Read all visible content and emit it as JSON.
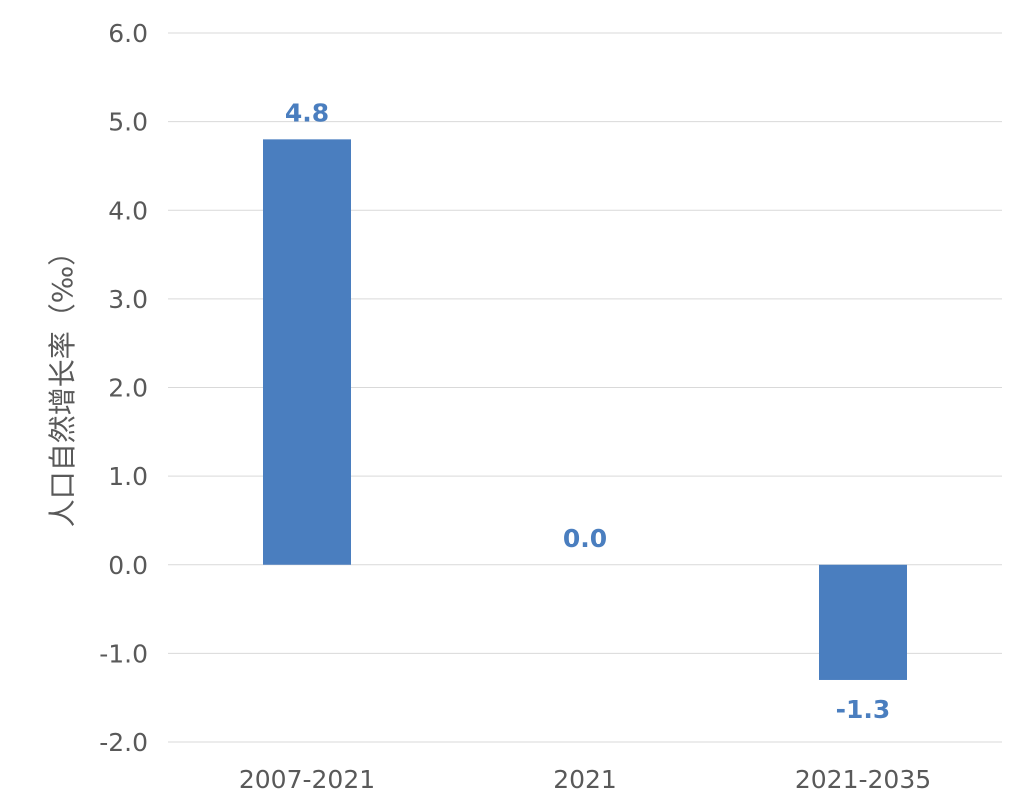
{
  "chart_data": {
    "type": "bar",
    "categories": [
      "2007-2021",
      "2021",
      "2021-2035"
    ],
    "values": [
      4.8,
      0.0,
      -1.3
    ],
    "value_labels": [
      "4.8",
      "0.0",
      "-1.3"
    ],
    "title": "",
    "xlabel": "",
    "ylabel": "人口自然增长率（‰）",
    "ylim": [
      -2.0,
      6.0
    ],
    "yticks": [
      6.0,
      5.0,
      4.0,
      3.0,
      2.0,
      1.0,
      0.0,
      -1.0,
      -2.0
    ],
    "ytick_labels": [
      "6.0",
      "5.0",
      "4.0",
      "3.0",
      "2.0",
      "1.0",
      "0.0",
      "-1.0",
      "-2.0"
    ],
    "grid": true,
    "legend": "none",
    "bar_color": "#4a7ebf",
    "label_color": "#4a7ebf"
  }
}
